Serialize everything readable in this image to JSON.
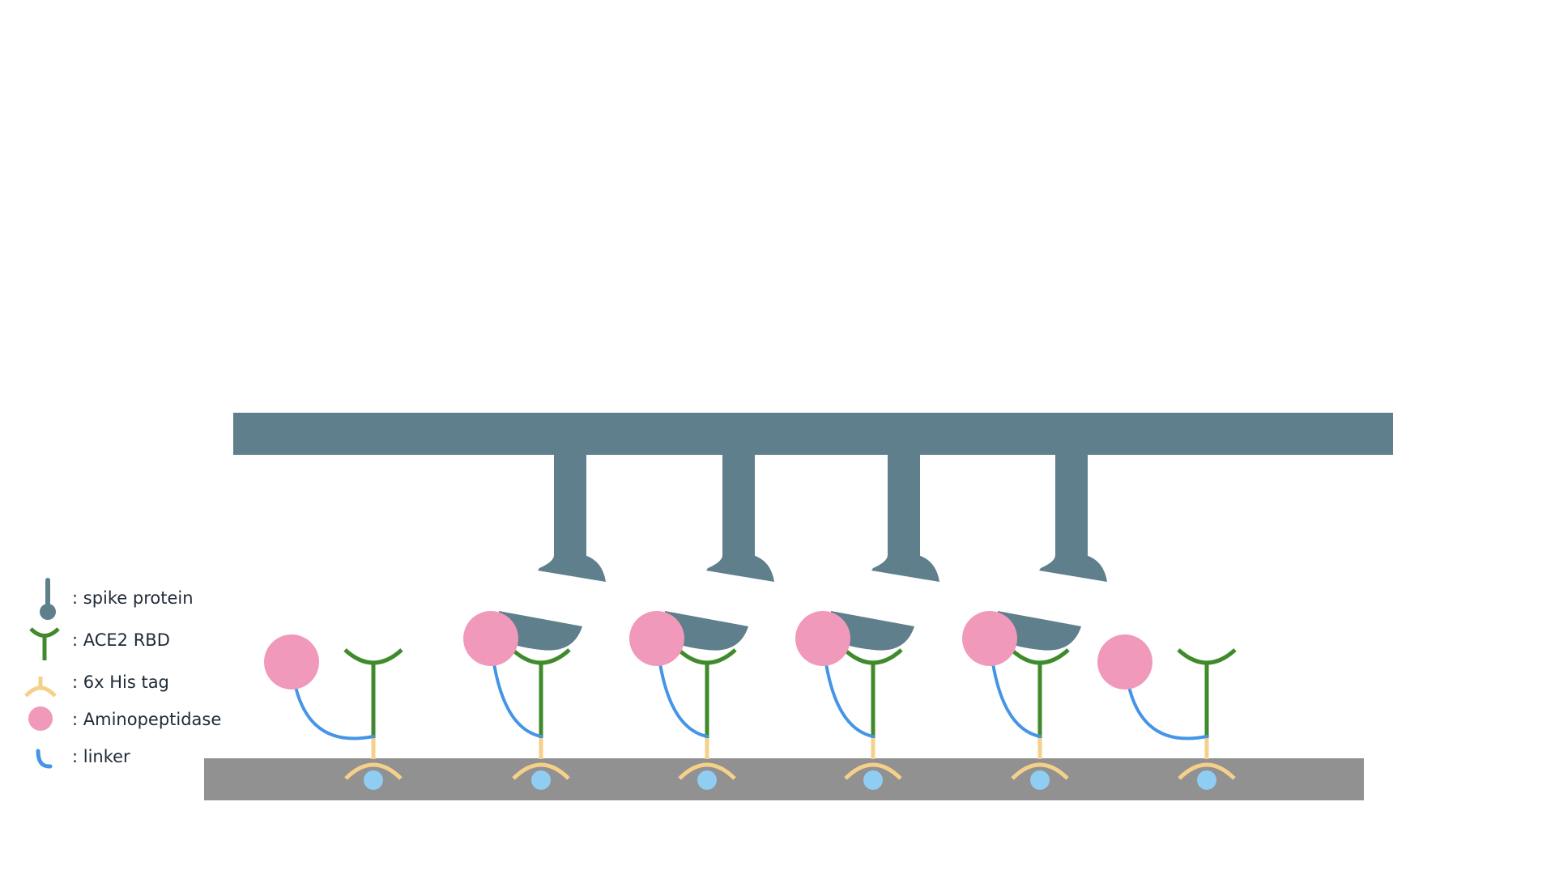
{
  "colors": {
    "spike": "#5e7f8b",
    "ace2": "#3f8b2c",
    "his_tag": "#f5d08a",
    "aminopeptidase": "#f099bb",
    "linker": "#4595e6",
    "surface": "#919191",
    "bead": "#8fcdf2",
    "background": "#ffffff"
  },
  "legend": [
    {
      "icon": "spike-protein-icon",
      "label": ": spike protein"
    },
    {
      "icon": "ace2-rbd-icon",
      "label": ": ACE2 RBD"
    },
    {
      "icon": "his-tag-icon",
      "label": ": 6x His tag"
    },
    {
      "icon": "aminopeptidase-icon",
      "label": ": Aminopeptidase"
    },
    {
      "icon": "linker-icon",
      "label": ": linker"
    }
  ],
  "diagram": {
    "spike_count": 4,
    "ace2_units": 6,
    "bound_units": [
      false,
      true,
      true,
      true,
      true,
      false
    ]
  }
}
